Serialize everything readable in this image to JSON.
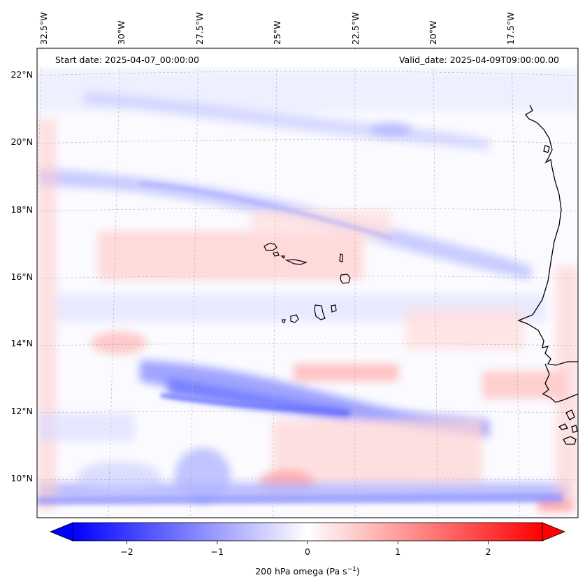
{
  "map": {
    "region": "Cabo Verde / eastern tropical Atlantic",
    "projection": "Lambert conformal style (curved graticule)",
    "lon_labels": [
      "32.5°W",
      "30°W",
      "27.5°W",
      "25°W",
      "22.5°W",
      "20°W",
      "17.5°W"
    ],
    "lon_values": [
      -32.5,
      -30,
      -27.5,
      -25,
      -22.5,
      -20,
      -17.5
    ],
    "lat_labels": [
      "22°N",
      "20°N",
      "18°N",
      "16°N",
      "14°N",
      "12°N",
      "10°N"
    ],
    "lat_values": [
      22,
      20,
      18,
      16,
      14,
      12,
      10
    ],
    "start_date_text": "Start date: 2025-04-07_00:00:00",
    "valid_date_text": "Valid_date: 2025-04-09T09:00:00.00",
    "field": "200 hPa omega",
    "features": [
      "Cabo Verde islands",
      "West African coastline"
    ]
  },
  "colorbar": {
    "label_text": "200 hPa omega (Pa s",
    "label_unit_sup": "−1",
    "label_close": ")",
    "tick_labels": [
      "−2",
      "−1",
      "0",
      "1",
      "2"
    ],
    "tick_values": [
      -2,
      -1,
      0,
      1,
      2
    ],
    "range": [
      -2.6,
      2.6
    ],
    "colormap": "bwr",
    "extend": "both",
    "colors": {
      "negative": "#0000ff",
      "zero": "#ffffff",
      "positive": "#ff0000"
    }
  }
}
